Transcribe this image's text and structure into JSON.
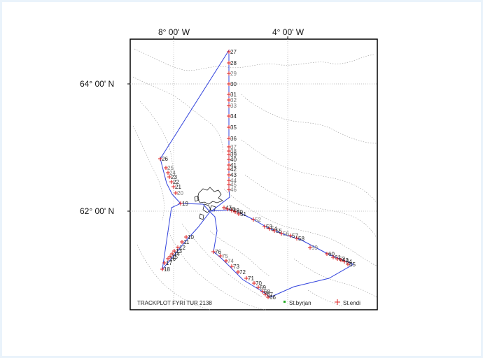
{
  "map": {
    "title": "TRACKPLOT FYRI TUR 2138",
    "lon_labels": [
      "8° 00' W",
      "4° 00' W"
    ],
    "lat_labels": [
      "64° 00' N",
      "62° 00' N"
    ],
    "legend": {
      "start": "St.byrjan",
      "end": "St.endi"
    },
    "colors": {
      "track": "#3344dd",
      "station": "#dd2222",
      "contour": "#9a9a9a"
    }
  },
  "stations": [
    {
      "id": "26"
    },
    {
      "id": "25"
    },
    {
      "id": "24"
    },
    {
      "id": "23"
    },
    {
      "id": "22"
    },
    {
      "id": "21"
    },
    {
      "id": "20"
    },
    {
      "id": "19"
    },
    {
      "id": "18"
    },
    {
      "id": "27"
    },
    {
      "id": "28"
    },
    {
      "id": "29"
    },
    {
      "id": "30"
    },
    {
      "id": "31"
    },
    {
      "id": "32"
    },
    {
      "id": "33"
    },
    {
      "id": "34"
    },
    {
      "id": "35"
    },
    {
      "id": "36"
    },
    {
      "id": "37"
    },
    {
      "id": "38"
    },
    {
      "id": "39"
    },
    {
      "id": "40"
    },
    {
      "id": "41"
    },
    {
      "id": "42"
    },
    {
      "id": "43"
    },
    {
      "id": "44"
    },
    {
      "id": "45"
    },
    {
      "id": "46"
    },
    {
      "id": "47"
    },
    {
      "id": "48"
    },
    {
      "id": "49"
    },
    {
      "id": "50"
    },
    {
      "id": "51"
    },
    {
      "id": "52"
    },
    {
      "id": "53"
    },
    {
      "id": "54"
    },
    {
      "id": "55"
    },
    {
      "id": "56"
    },
    {
      "id": "57"
    },
    {
      "id": "58"
    },
    {
      "id": "59"
    },
    {
      "id": "60"
    },
    {
      "id": "61"
    },
    {
      "id": "62"
    },
    {
      "id": "63"
    },
    {
      "id": "64"
    },
    {
      "id": "65"
    },
    {
      "id": "66"
    },
    {
      "id": "67"
    },
    {
      "id": "68"
    },
    {
      "id": "69"
    },
    {
      "id": "70"
    },
    {
      "id": "71"
    },
    {
      "id": "72"
    },
    {
      "id": "73"
    },
    {
      "id": "74"
    },
    {
      "id": "75"
    },
    {
      "id": "76"
    },
    {
      "id": "10"
    },
    {
      "id": "11"
    },
    {
      "id": "12"
    },
    {
      "id": "13"
    },
    {
      "id": "14"
    },
    {
      "id": "15"
    },
    {
      "id": "16"
    },
    {
      "id": "17"
    }
  ]
}
